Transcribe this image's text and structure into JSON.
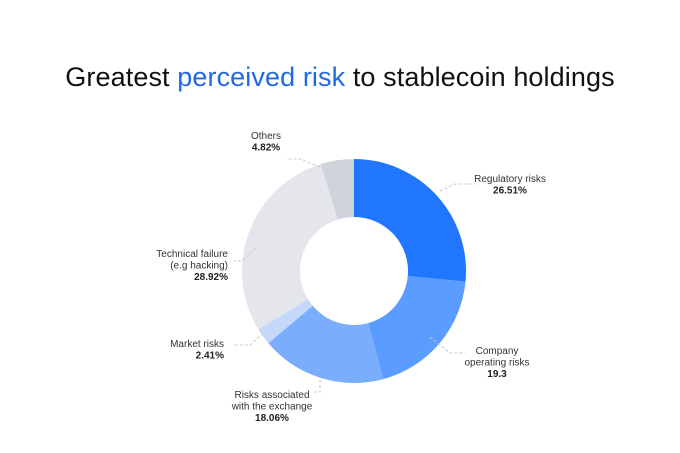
{
  "title": {
    "prefix": "Greatest ",
    "highlight": "perceived risk",
    "suffix": " to stablecoin holdings"
  },
  "colors": {
    "title_highlight": "#1f6ae0",
    "slices": [
      "#2176ff",
      "#5a9cff",
      "#7aaefc",
      "#c4d8fb",
      "#e4e6ec",
      "#ced3dc"
    ],
    "leader_line": "#c5c8cf"
  },
  "chart_data": {
    "type": "pie",
    "variant": "donut",
    "title": "Greatest perceived risk to stablecoin holdings",
    "slices": [
      {
        "label_lines": [
          "Regulatory risks"
        ],
        "value": 26.51,
        "value_text": "26.51%"
      },
      {
        "label_lines": [
          "Company",
          "operating risks"
        ],
        "value": 19.3,
        "value_text": "19.3"
      },
      {
        "label_lines": [
          "Risks associated",
          "with the exchange"
        ],
        "value": 18.06,
        "value_text": "18.06%"
      },
      {
        "label_lines": [
          "Market risks"
        ],
        "value": 2.41,
        "value_text": "2.41%"
      },
      {
        "label_lines": [
          "Technical failure",
          "(e.g hacking)"
        ],
        "value": 28.92,
        "value_text": "28.92%"
      },
      {
        "label_lines": [
          "Others"
        ],
        "value": 4.82,
        "value_text": "4.82%"
      }
    ],
    "start": "12 o'clock",
    "direction": "clockwise"
  }
}
